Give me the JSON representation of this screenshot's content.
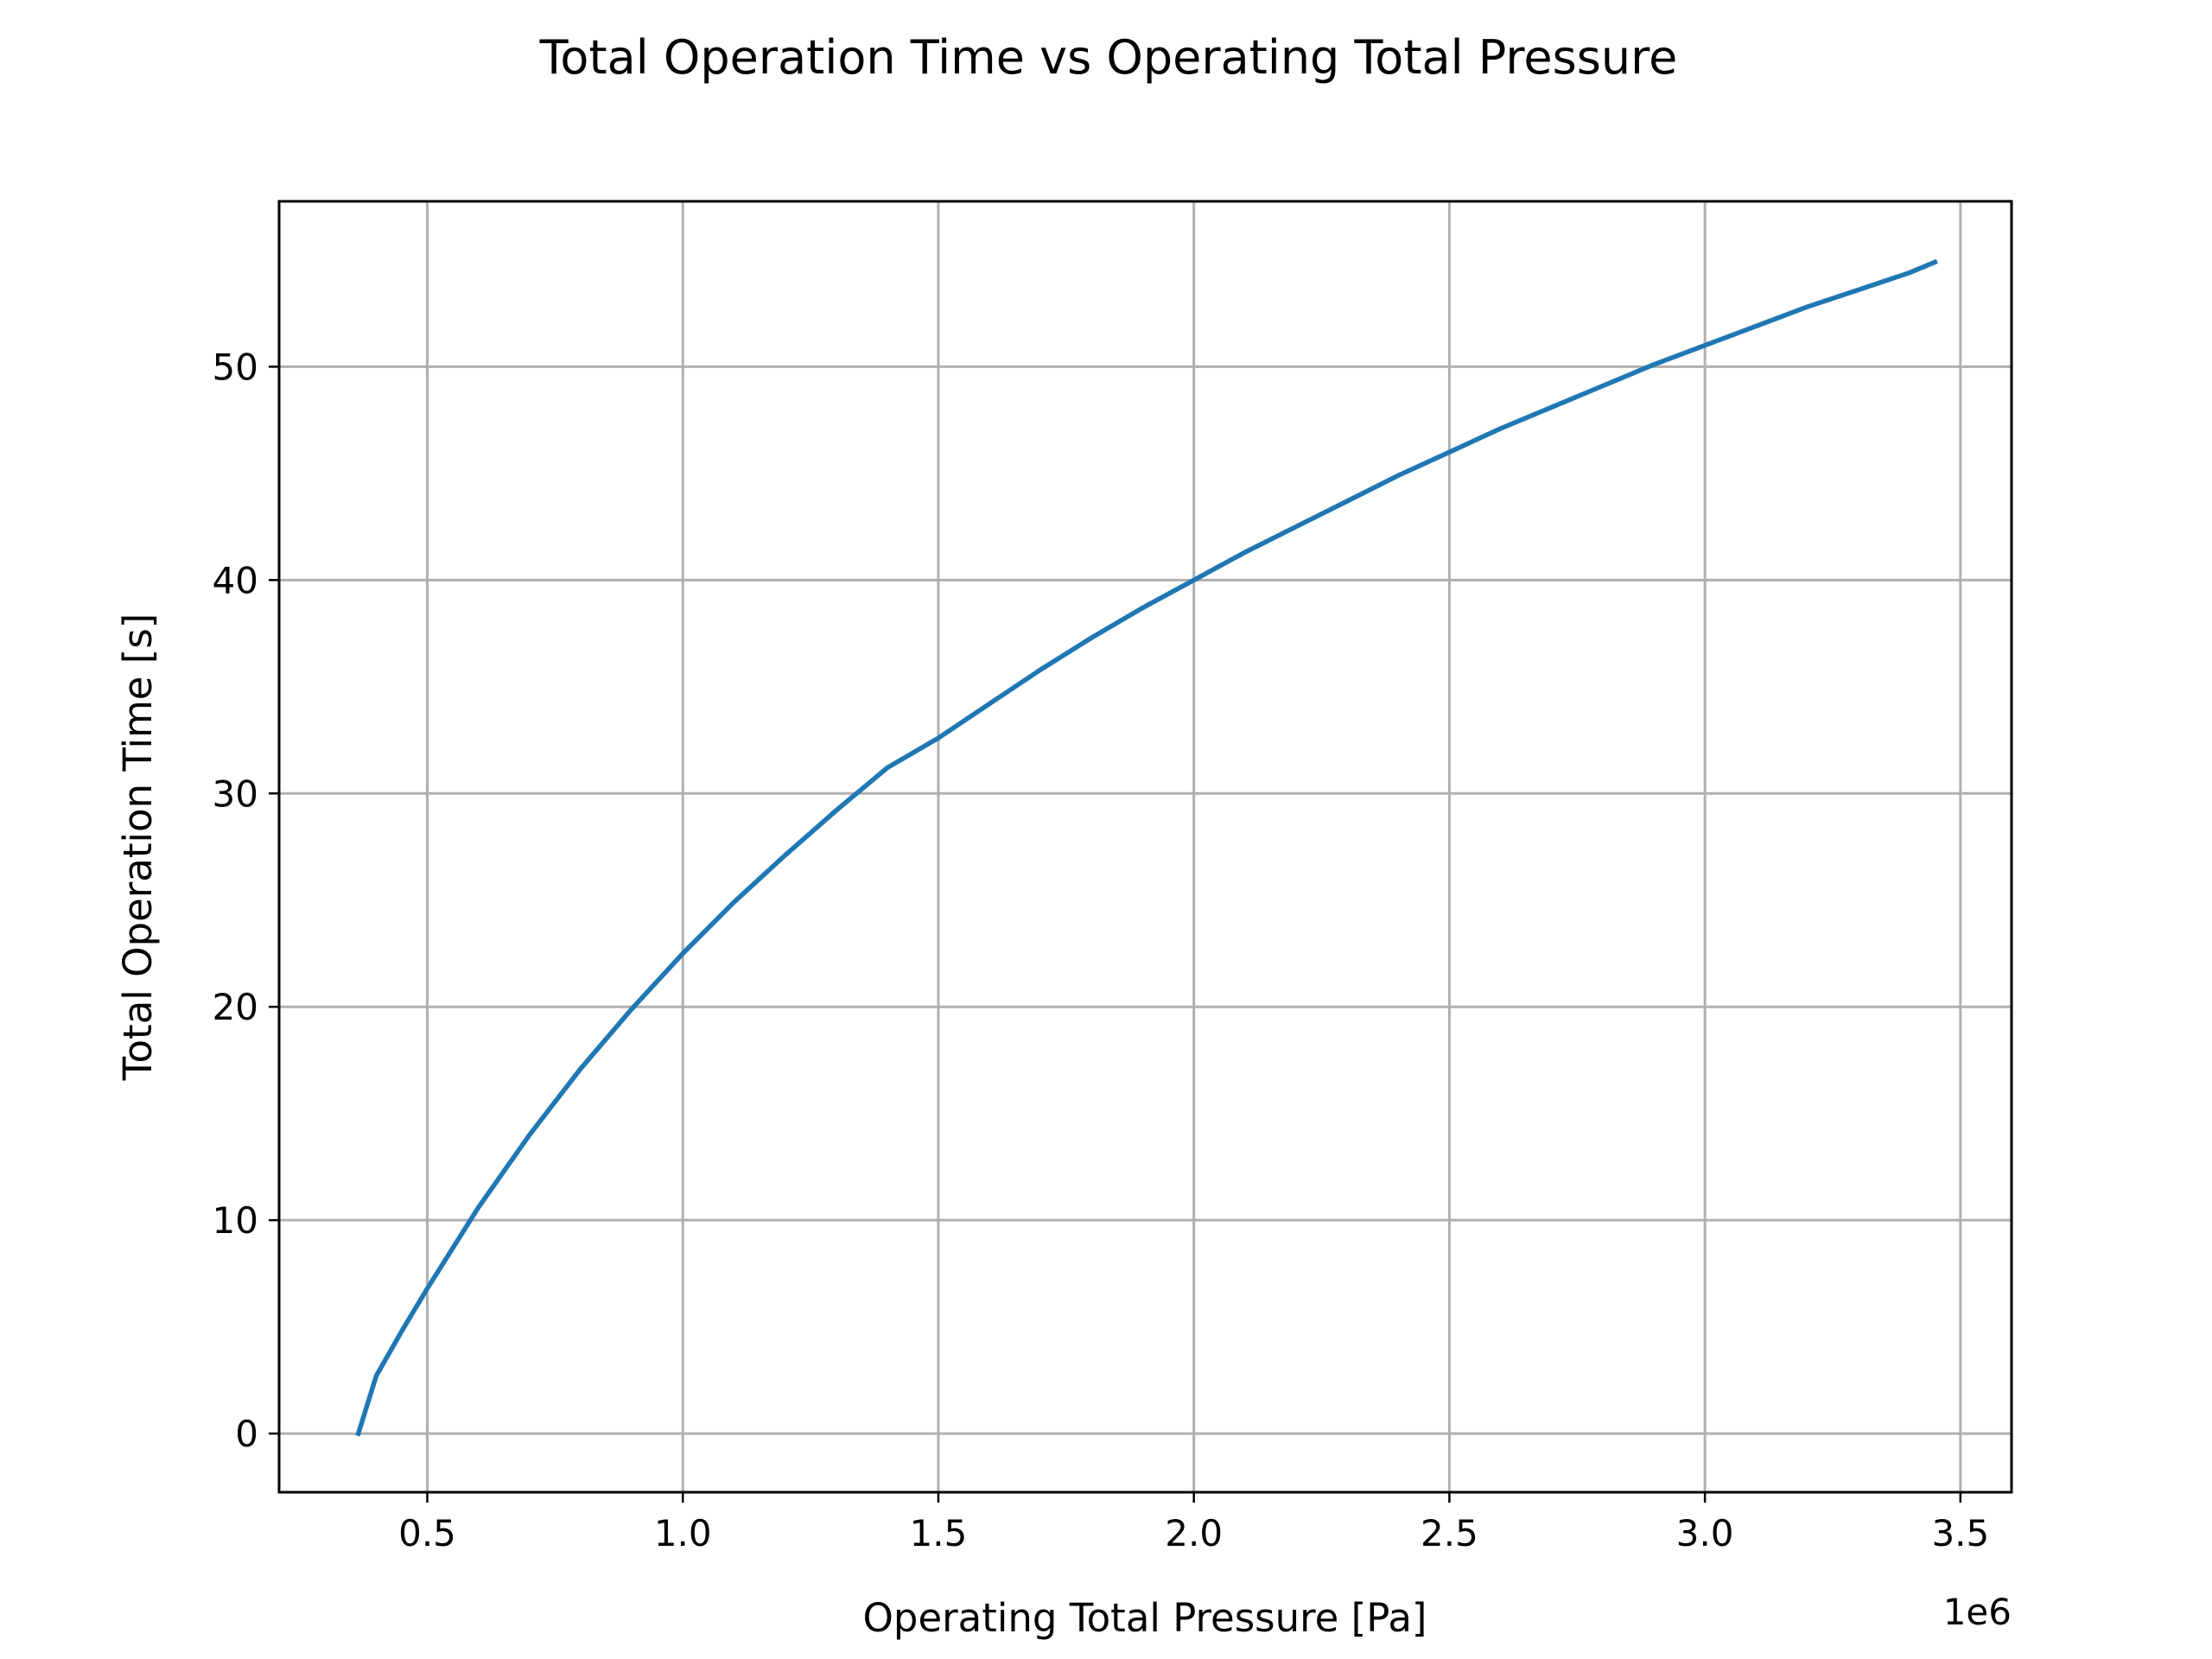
{
  "chart_data": {
    "type": "line",
    "title": "Total Operation Time vs Operating Total Pressure",
    "xlabel": "Operating Total Pressure [Pa]",
    "ylabel": "Total Operation Time [s]",
    "x_offset_label": "1e6",
    "xlim": [
      0.21,
      3.6
    ],
    "ylim": [
      -2.75,
      57.75
    ],
    "grid": true,
    "x_ticks": [
      0.5,
      1.0,
      1.5,
      2.0,
      2.5,
      3.0,
      3.5
    ],
    "x_tick_labels": [
      "0.5",
      "1.0",
      "1.5",
      "2.0",
      "2.5",
      "3.0",
      "3.5"
    ],
    "y_ticks": [
      0,
      10,
      20,
      30,
      40,
      50
    ],
    "y_tick_labels": [
      "0",
      "10",
      "20",
      "30",
      "40",
      "50"
    ],
    "series": [
      {
        "color": "#1f77b4",
        "x": [
          0.365,
          0.4,
          0.45,
          0.5,
          0.55,
          0.6,
          0.7,
          0.8,
          0.9,
          1.0,
          1.1,
          1.2,
          1.3,
          1.4,
          1.5,
          1.6,
          1.7,
          1.8,
          1.9,
          2.0,
          2.1,
          2.2,
          2.3,
          2.4,
          2.5,
          2.6,
          2.7,
          2.8,
          2.9,
          3.0,
          3.1,
          3.2,
          3.3,
          3.4,
          3.45
        ],
        "y": [
          0.0,
          2.7,
          4.8,
          6.8,
          8.7,
          10.6,
          14.0,
          17.1,
          19.9,
          22.5,
          24.9,
          27.1,
          29.2,
          31.2,
          32.6,
          34.2,
          35.8,
          37.3,
          38.7,
          40.0,
          41.3,
          42.5,
          43.7,
          44.9,
          46.0,
          47.1,
          48.1,
          49.1,
          50.1,
          51.0,
          51.9,
          52.8,
          53.6,
          54.4,
          54.9
        ]
      }
    ]
  }
}
